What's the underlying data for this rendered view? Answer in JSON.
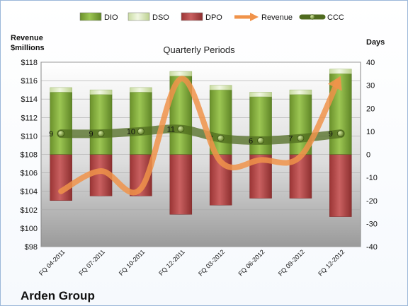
{
  "chart_data": {
    "type": "bar",
    "title": "Quarterly Periods",
    "company": "Arden Group",
    "left_axis_label": [
      "Revenue",
      "$millions"
    ],
    "right_axis_label": "Days",
    "categories": [
      "FQ 04-2011",
      "FQ 07-2011",
      "FQ 10-2011",
      "FQ 12-2011",
      "FQ 03-2012",
      "FQ 06-2012",
      "FQ 09-2012",
      "FQ 12-2012"
    ],
    "left_axis": {
      "min": 98,
      "max": 118,
      "ticks": [
        "$98",
        "$100",
        "$102",
        "$104",
        "$106",
        "$108",
        "$110",
        "$112",
        "$114",
        "$116",
        "$118"
      ]
    },
    "right_axis": {
      "min": -40,
      "max": 40,
      "ticks": [
        "-40",
        "-30",
        "-20",
        "-10",
        "0",
        "10",
        "20",
        "30",
        "40"
      ]
    },
    "legend": [
      "DIO",
      "DSO",
      "DPO",
      "Revenue",
      "CCC"
    ],
    "legend_position": "top",
    "grid": true,
    "series": [
      {
        "name": "DIO",
        "axis": "right",
        "color": "#7fa63a",
        "values": [
          27,
          26,
          27,
          34,
          28,
          25,
          26,
          35
        ]
      },
      {
        "name": "DSO",
        "axis": "right",
        "color": "#ddebc0",
        "values": [
          2,
          2,
          2,
          2,
          2,
          2,
          2,
          2
        ]
      },
      {
        "name": "DPO",
        "axis": "right",
        "color": "#b34a4a",
        "values": [
          -20,
          -18,
          -18,
          -26,
          -22,
          -19,
          -19,
          -27
        ]
      },
      {
        "name": "Revenue",
        "axis": "left",
        "color": "#f0934a",
        "values": [
          104.0,
          106.2,
          104.3,
          116.2,
          107.2,
          107.4,
          107.8,
          116.5
        ]
      },
      {
        "name": "CCC",
        "axis": "right",
        "color": "#4f6b1f",
        "values": [
          9,
          9,
          10,
          11,
          7,
          6,
          7,
          9
        ],
        "labels": [
          "9",
          "9",
          "10",
          "11",
          "7",
          "6",
          "7",
          "9"
        ]
      }
    ]
  }
}
